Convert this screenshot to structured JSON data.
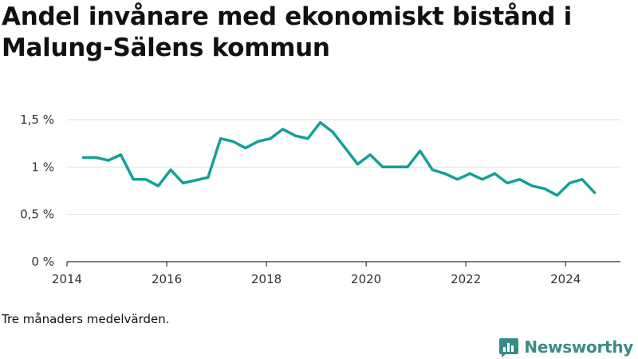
{
  "title": "Andel invånare med ekonomiskt bistånd i Malung-Sälens kommun",
  "note": "Tre månaders medelvärden.",
  "brand": {
    "name": "Newsworthy",
    "icon": "bar-chart-logo-icon",
    "color": "#3a8c88"
  },
  "chart_data": {
    "type": "line",
    "title": "Andel invånare med ekonomiskt bistånd i Malung-Sälens kommun",
    "xlabel": "",
    "ylabel": "",
    "grid": true,
    "line_color": "#12a196",
    "xlim": [
      2014,
      2025.1
    ],
    "ylim": [
      0,
      1.5
    ],
    "x_ticks": [
      2014,
      2016,
      2018,
      2020,
      2022,
      2024
    ],
    "x_tick_labels": [
      "2014",
      "2016",
      "2018",
      "2020",
      "2022",
      "2024"
    ],
    "y_ticks": [
      0,
      0.5,
      1,
      1.5
    ],
    "y_tick_labels": [
      "0 %",
      "0,5 %",
      "1 %",
      "1,5 %"
    ],
    "series": [
      {
        "x": [
          2014.33,
          2014.58,
          2014.83,
          2015.08,
          2015.33,
          2015.58,
          2015.83,
          2016.08,
          2016.33,
          2016.58,
          2016.83,
          2017.08,
          2017.33,
          2017.58,
          2017.83,
          2018.08,
          2018.33,
          2018.58,
          2018.83,
          2019.08,
          2019.33,
          2019.58,
          2019.83,
          2020.08,
          2020.33,
          2020.58,
          2020.83,
          2021.08,
          2021.33,
          2021.58,
          2021.83,
          2022.08,
          2022.33,
          2022.58,
          2022.83,
          2023.08,
          2023.33,
          2023.58,
          2023.83,
          2024.08,
          2024.33,
          2024.58
        ],
        "values": [
          1.1,
          1.1,
          1.07,
          1.13,
          0.87,
          0.87,
          0.8,
          0.97,
          0.83,
          0.86,
          0.89,
          1.3,
          1.27,
          1.2,
          1.27,
          1.3,
          1.4,
          1.33,
          1.3,
          1.47,
          1.37,
          1.2,
          1.03,
          1.13,
          1.0,
          1.0,
          1.0,
          1.17,
          0.97,
          0.93,
          0.87,
          0.93,
          0.87,
          0.93,
          0.83,
          0.87,
          0.8,
          0.77,
          0.7,
          0.83,
          0.87,
          0.73
        ]
      }
    ]
  }
}
